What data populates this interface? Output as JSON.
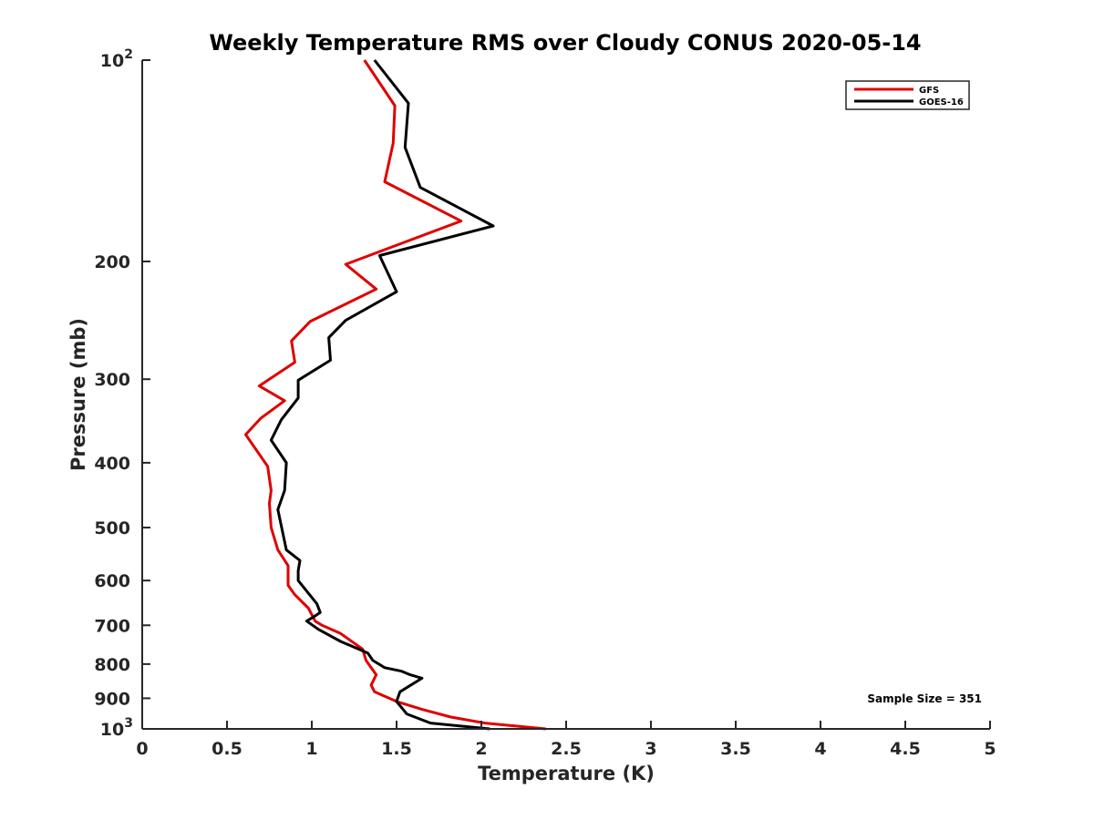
{
  "chart_data": {
    "type": "line",
    "title": "Weekly Temperature RMS over Cloudy CONUS 2020-05-14",
    "xlabel": "Temperature (K)",
    "ylabel": "Pressure (mb)",
    "xlim": [
      0,
      5
    ],
    "ylim": [
      100,
      1000
    ],
    "y_scale": "log",
    "y_reversed": true,
    "grid": false,
    "legend_placement": "top-right",
    "x_ticks": [
      {
        "value": 0,
        "label": "0"
      },
      {
        "value": 0.5,
        "label": "0.5"
      },
      {
        "value": 1,
        "label": "1"
      },
      {
        "value": 1.5,
        "label": "1.5"
      },
      {
        "value": 2,
        "label": "2"
      },
      {
        "value": 2.5,
        "label": "2.5"
      },
      {
        "value": 3,
        "label": "3"
      },
      {
        "value": 3.5,
        "label": "3.5"
      },
      {
        "value": 4,
        "label": "4"
      },
      {
        "value": 4.5,
        "label": "4.5"
      },
      {
        "value": 5,
        "label": "5"
      }
    ],
    "y_ticks": [
      {
        "value": 100,
        "base": "10",
        "exp": "2"
      },
      {
        "value": 200,
        "label": "200"
      },
      {
        "value": 300,
        "label": "300"
      },
      {
        "value": 400,
        "label": "400"
      },
      {
        "value": 500,
        "label": "500"
      },
      {
        "value": 600,
        "label": "600"
      },
      {
        "value": 700,
        "label": "700"
      },
      {
        "value": 800,
        "label": "800"
      },
      {
        "value": 900,
        "label": "900"
      },
      {
        "value": 1000,
        "base": "10",
        "exp": "3"
      }
    ],
    "annotation": "Sample Size = 351",
    "series": [
      {
        "name": "GFS",
        "color": "#e00000",
        "points": [
          [
            1.31,
            100
          ],
          [
            1.49,
            117
          ],
          [
            1.48,
            133
          ],
          [
            1.43,
            152
          ],
          [
            1.88,
            174
          ],
          [
            1.2,
            202
          ],
          [
            1.38,
            220
          ],
          [
            0.99,
            246
          ],
          [
            0.88,
            263
          ],
          [
            0.9,
            283
          ],
          [
            0.69,
            307
          ],
          [
            0.84,
            323
          ],
          [
            0.7,
            343
          ],
          [
            0.61,
            363
          ],
          [
            0.74,
            405
          ],
          [
            0.76,
            440
          ],
          [
            0.75,
            460
          ],
          [
            0.76,
            500
          ],
          [
            0.8,
            540
          ],
          [
            0.86,
            570
          ],
          [
            0.86,
            610
          ],
          [
            0.9,
            630
          ],
          [
            0.98,
            660
          ],
          [
            1.02,
            690
          ],
          [
            1.06,
            700
          ],
          [
            1.17,
            720
          ],
          [
            1.3,
            760
          ],
          [
            1.32,
            790
          ],
          [
            1.38,
            830
          ],
          [
            1.35,
            860
          ],
          [
            1.37,
            880
          ],
          [
            1.5,
            910
          ],
          [
            1.65,
            935
          ],
          [
            1.82,
            960
          ],
          [
            2.02,
            980
          ],
          [
            2.38,
            1000
          ]
        ]
      },
      {
        "name": "GOES-16",
        "color": "#000000",
        "points": [
          [
            1.37,
            100
          ],
          [
            1.57,
            116
          ],
          [
            1.55,
            135
          ],
          [
            1.64,
            155
          ],
          [
            2.07,
            177
          ],
          [
            1.4,
            196
          ],
          [
            1.5,
            222
          ],
          [
            1.2,
            245
          ],
          [
            1.1,
            260
          ],
          [
            1.11,
            281
          ],
          [
            0.92,
            301
          ],
          [
            0.92,
            320
          ],
          [
            0.82,
            345
          ],
          [
            0.76,
            370
          ],
          [
            0.85,
            400
          ],
          [
            0.84,
            440
          ],
          [
            0.8,
            470
          ],
          [
            0.85,
            540
          ],
          [
            0.93,
            560
          ],
          [
            0.92,
            580
          ],
          [
            0.92,
            600
          ],
          [
            1.03,
            650
          ],
          [
            1.05,
            670
          ],
          [
            1.01,
            680
          ],
          [
            0.97,
            690
          ],
          [
            1.04,
            710
          ],
          [
            1.17,
            740
          ],
          [
            1.33,
            770
          ],
          [
            1.36,
            790
          ],
          [
            1.43,
            810
          ],
          [
            1.53,
            820
          ],
          [
            1.58,
            830
          ],
          [
            1.65,
            840
          ],
          [
            1.52,
            880
          ],
          [
            1.5,
            910
          ],
          [
            1.56,
            950
          ],
          [
            1.7,
            980
          ],
          [
            2.05,
            1000
          ]
        ]
      }
    ]
  }
}
